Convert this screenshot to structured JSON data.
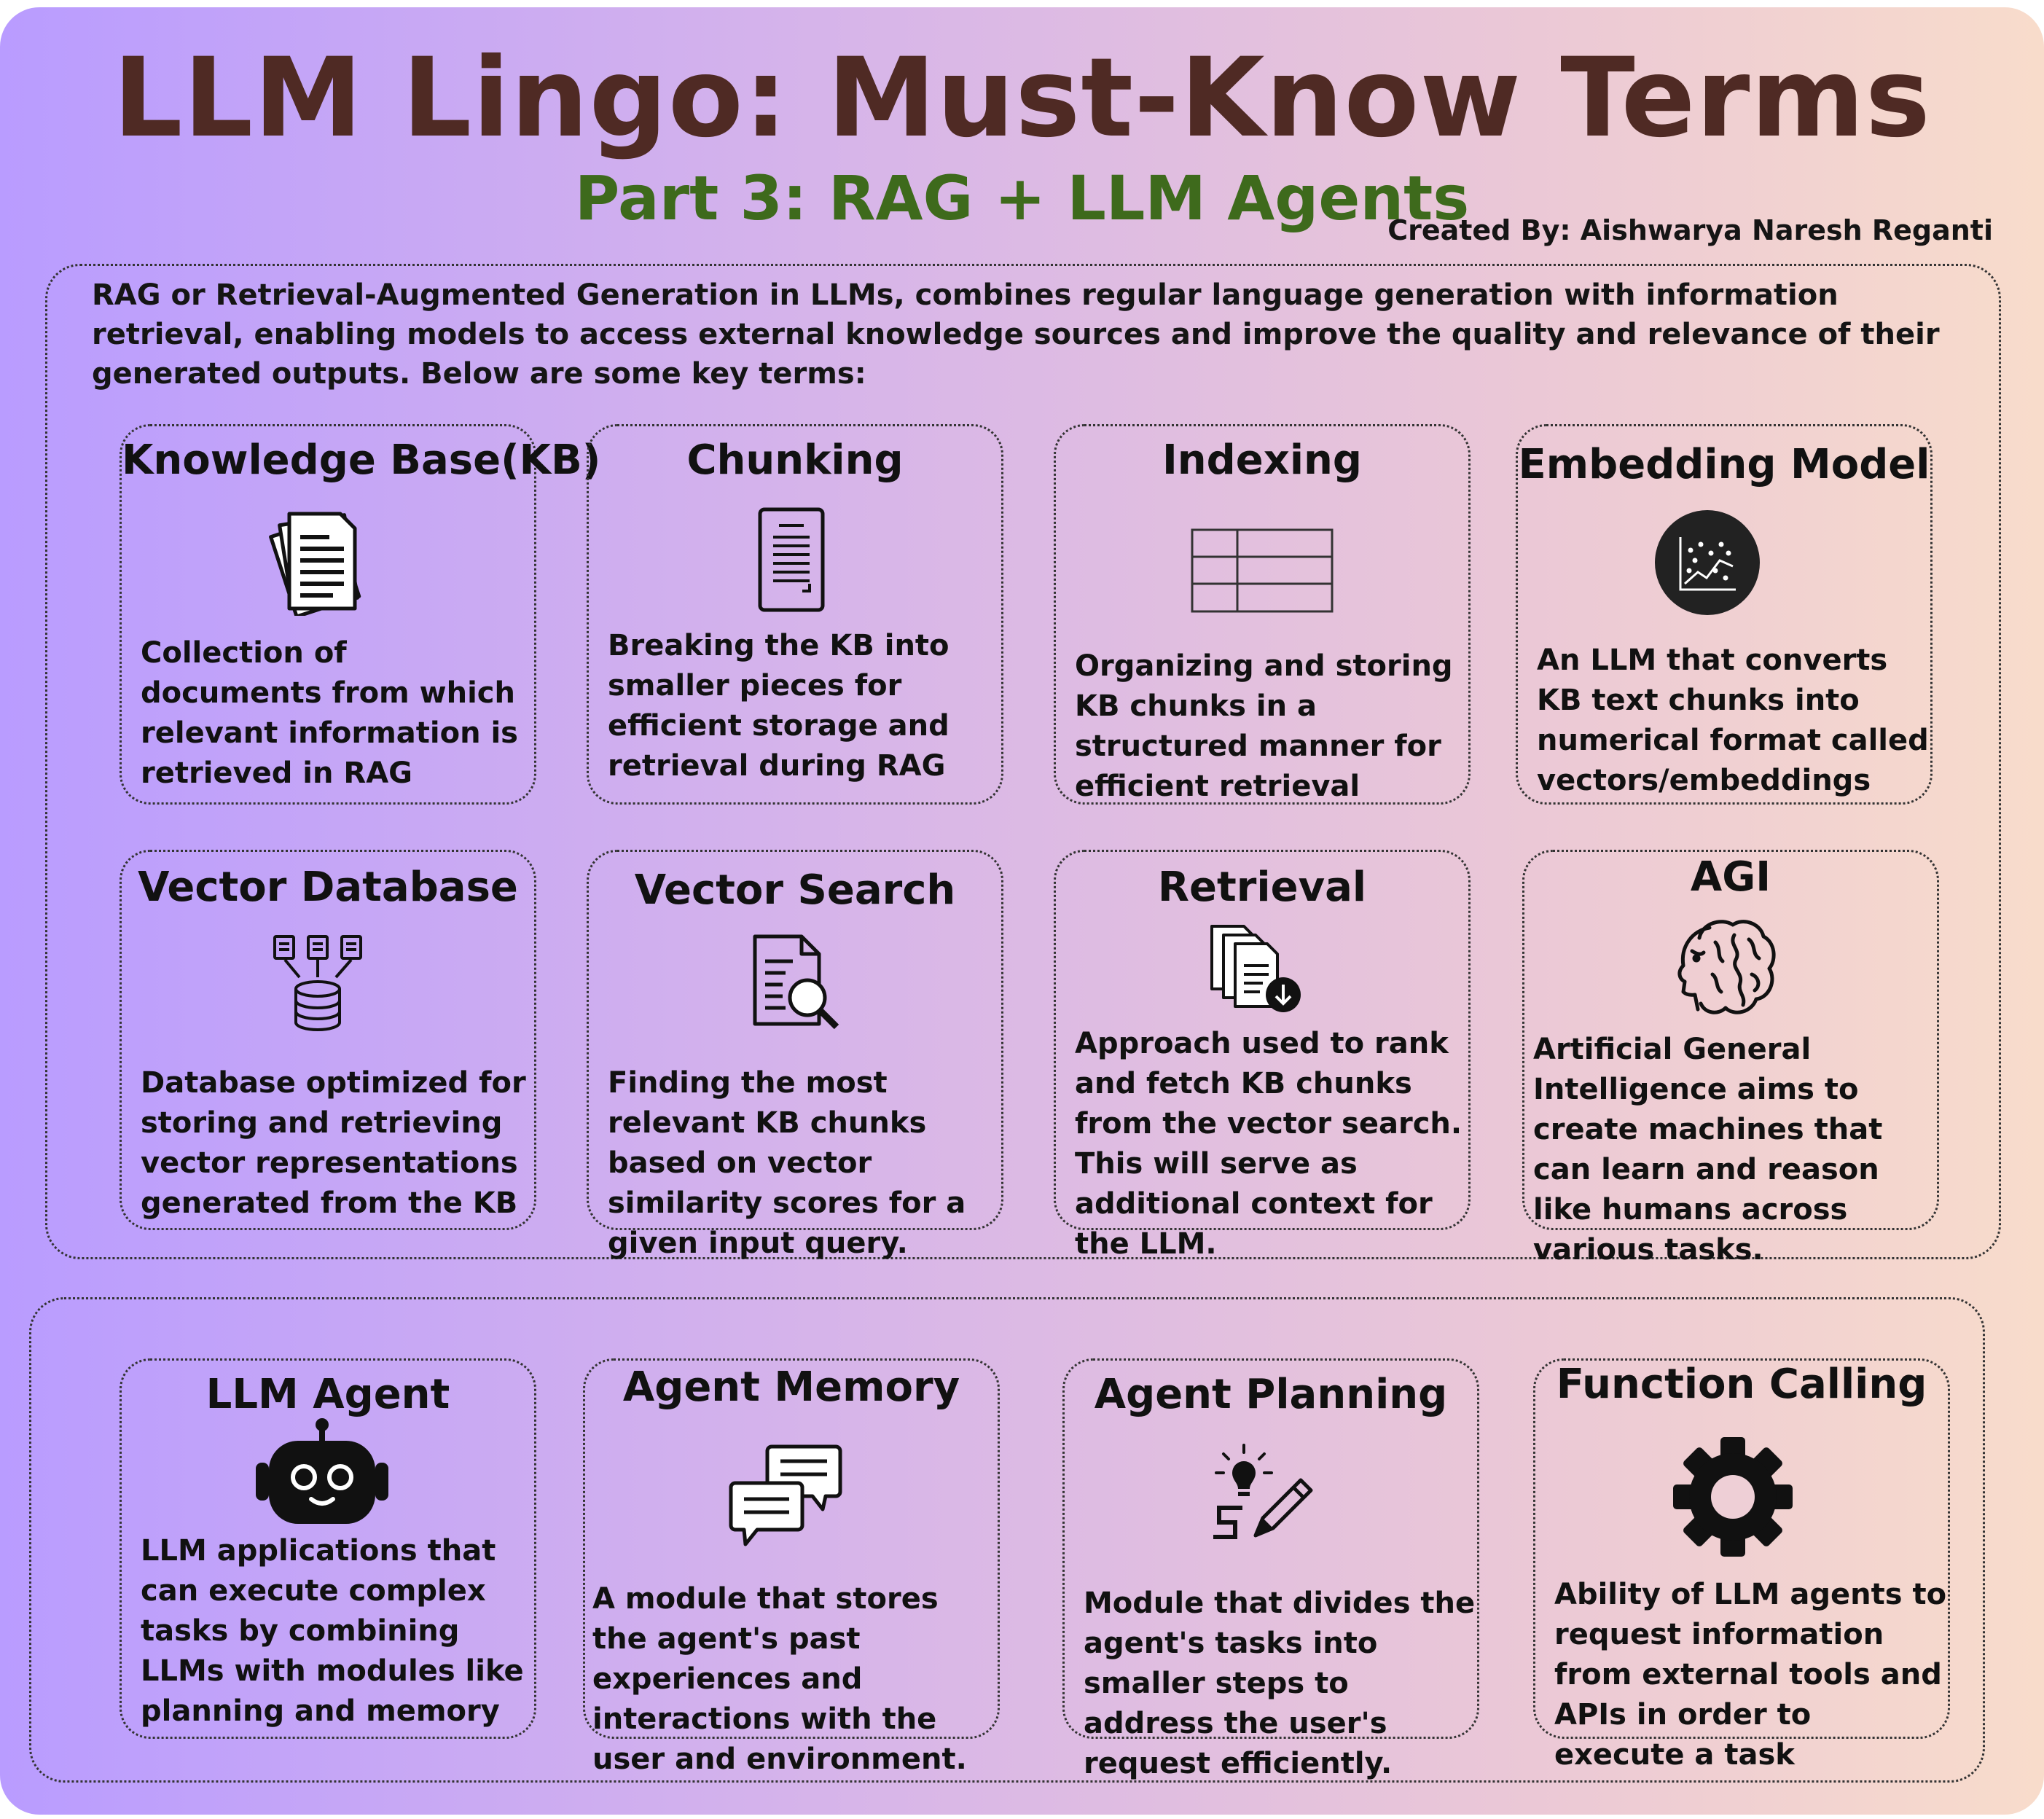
{
  "title": "LLM Lingo: Must-Know Terms",
  "subtitle": "Part 3: RAG + LLM Agents",
  "creator": "Created By: Aishwarya Naresh Reganti",
  "intro": "RAG or Retrieval-Augmented Generation in LLMs, combines regular language generation with information retrieval, enabling models to access external knowledge sources and improve the quality and relevance of their generated outputs. Below are some key terms:",
  "rag_terms": [
    {
      "title": "Knowledge Base(KB)",
      "icon": "documents-stack-icon",
      "desc": "Collection of documents from which relevant information is retrieved in RAG"
    },
    {
      "title": "Chunking",
      "icon": "document-lines-icon",
      "desc": "Breaking the KB into smaller pieces for efficient storage and retrieval during RAG"
    },
    {
      "title": "Indexing",
      "icon": "table-grid-icon",
      "desc": "Organizing and storing KB chunks  in a structured manner for efficient retrieval"
    },
    {
      "title": "Embedding Model",
      "icon": "scatter-plot-icon",
      "desc": "An LLM that converts KB text chunks into numerical format  called vectors/embeddings"
    },
    {
      "title": "Vector Database",
      "icon": "database-icon",
      "desc": "Database optimized for storing and retrieving vector representations generated from the KB"
    },
    {
      "title": "Vector Search",
      "icon": "document-search-icon",
      "desc": "Finding the most relevant KB chunks based on vector similarity scores for a given input query."
    },
    {
      "title": "Retrieval",
      "icon": "documents-download-icon",
      "desc": "Approach used to rank and fetch KB chunks from the vector search. This will serve as additional context for the LLM."
    },
    {
      "title": "AGI",
      "icon": "brain-head-icon",
      "desc": "Artificial General Intelligence aims to create machines that can learn and reason like humans across various tasks."
    }
  ],
  "agent_terms": [
    {
      "title": "LLM Agent",
      "icon": "robot-icon",
      "desc": "LLM applications that can execute complex tasks by combining LLMs with modules like planning and memory"
    },
    {
      "title": "Agent Memory",
      "icon": "chat-bubbles-icon",
      "desc": "A module that stores the agent's past experiences and interactions with the user and environment."
    },
    {
      "title": "Agent Planning",
      "icon": "idea-pencil-icon",
      "desc": "Module that divides the agent's tasks into smaller steps to address the user's request efficiently."
    },
    {
      "title": "Function Calling",
      "icon": "gear-icon",
      "desc": "Ability of LLM agents to request information from external tools and APIs in order to execute a task"
    }
  ]
}
